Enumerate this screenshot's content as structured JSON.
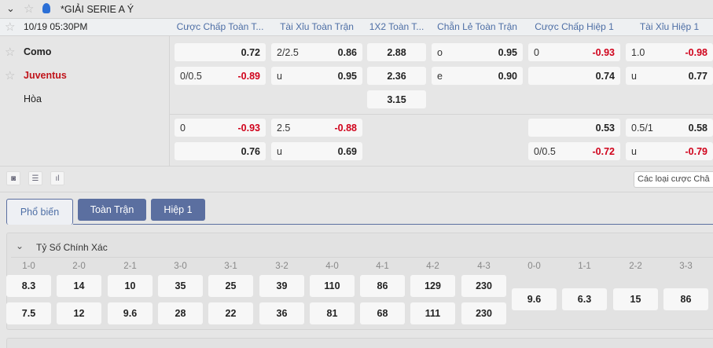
{
  "league": {
    "name": "*GIẢI SERIE A Ý"
  },
  "match": {
    "time": "10/19 05:30PM",
    "home": "Como",
    "away": "Juventus",
    "draw": "Hòa"
  },
  "columns": [
    "Cược Chấp Toàn T...",
    "Tài Xỉu Toàn Trận",
    "1X2 Toàn T...",
    "Chẵn Lẻ Toàn Trận",
    "Cược Chấp Hiệp 1",
    "Tài Xỉu Hiệp 1"
  ],
  "odds": {
    "main": [
      [
        {
          "l": "",
          "v": "0.72"
        },
        {
          "l": "2/2.5",
          "v": "0.86"
        },
        {
          "l": "",
          "v": "2.88"
        },
        {
          "l": "o",
          "v": "0.95"
        },
        {
          "l": "0",
          "v": "-0.93"
        },
        {
          "l": "1.0",
          "v": "-0.98"
        }
      ],
      [
        {
          "l": "0/0.5",
          "v": "-0.89"
        },
        {
          "l": "u",
          "v": "0.95"
        },
        {
          "l": "",
          "v": "2.36"
        },
        {
          "l": "e",
          "v": "0.90"
        },
        {
          "l": "",
          "v": "0.74"
        },
        {
          "l": "u",
          "v": "0.77"
        }
      ],
      [
        null,
        null,
        {
          "l": "",
          "v": "3.15"
        },
        null,
        null,
        null
      ]
    ],
    "alt": [
      [
        {
          "l": "0",
          "v": "-0.93"
        },
        {
          "l": "2.5",
          "v": "-0.88"
        },
        null,
        null,
        {
          "l": "",
          "v": "0.53"
        },
        {
          "l": "0.5/1",
          "v": "0.58"
        }
      ],
      [
        {
          "l": "",
          "v": "0.76"
        },
        {
          "l": "u",
          "v": "0.69"
        },
        null,
        null,
        {
          "l": "0/0.5",
          "v": "-0.72"
        },
        {
          "l": "u",
          "v": "-0.79"
        }
      ]
    ]
  },
  "bet_types_button": "Các loại cược Châ",
  "tabs": [
    "Phổ biến",
    "Toàn Trận",
    "Hiệp 1"
  ],
  "correct_score": {
    "title": "Tỷ Số Chính Xác",
    "pairs": [
      {
        "label": "1-0",
        "home": "8.3",
        "away": "7.5"
      },
      {
        "label": "2-0",
        "home": "14",
        "away": "12"
      },
      {
        "label": "2-1",
        "home": "10",
        "away": "9.6"
      },
      {
        "label": "3-0",
        "home": "35",
        "away": "28"
      },
      {
        "label": "3-1",
        "home": "25",
        "away": "22"
      },
      {
        "label": "3-2",
        "home": "39",
        "away": "36"
      },
      {
        "label": "4-0",
        "home": "110",
        "away": "81"
      },
      {
        "label": "4-1",
        "home": "86",
        "away": "68"
      },
      {
        "label": "4-2",
        "home": "129",
        "away": "111"
      },
      {
        "label": "4-3",
        "home": "230",
        "away": "230"
      }
    ],
    "draws": [
      {
        "label": "0-0",
        "v": "9.6"
      },
      {
        "label": "1-1",
        "v": "6.3"
      },
      {
        "label": "2-2",
        "v": "15"
      },
      {
        "label": "3-3",
        "v": "86"
      }
    ]
  },
  "colors": {
    "accent": "#5b6fa0",
    "negative": "#d0021b",
    "header_text": "#4d6ea5",
    "away_team": "#c0141b"
  }
}
